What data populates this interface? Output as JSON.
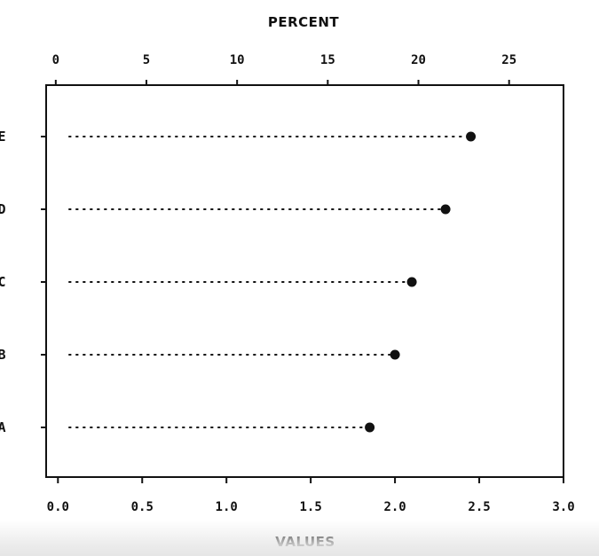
{
  "chart_data": {
    "type": "dot",
    "title": "",
    "top_axis": {
      "label": "PERCENT",
      "ticks": [
        0,
        5,
        10,
        15,
        20,
        25
      ],
      "range": [
        -0.53,
        28.0
      ]
    },
    "bottom_axis": {
      "label": "VALUES",
      "ticks": [
        "0.0",
        "0.5",
        "1.0",
        "1.5",
        "2.0",
        "2.5",
        "3.0"
      ],
      "range": [
        -0.07,
        3.0
      ]
    },
    "categories": [
      "E",
      "D",
      "C",
      "B",
      "A"
    ],
    "values": [
      2.45,
      2.3,
      2.1,
      2.0,
      1.85
    ],
    "percent": [
      22.9,
      21.5,
      19.6,
      18.7,
      17.3
    ],
    "grid": false,
    "legend": "none"
  },
  "colors": {
    "ink": "#111111",
    "background": "#ffffff"
  }
}
